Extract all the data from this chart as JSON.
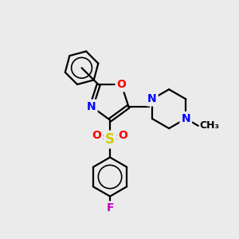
{
  "bg_color": "#ebebeb",
  "bond_color": "#000000",
  "bond_width": 1.6,
  "atom_colors": {
    "O": "#ff0000",
    "N": "#0000ff",
    "S": "#cccc00",
    "F": "#cc00cc",
    "C": "#000000"
  },
  "font_size_atom": 10,
  "figsize": [
    3.0,
    3.0
  ],
  "dpi": 100
}
